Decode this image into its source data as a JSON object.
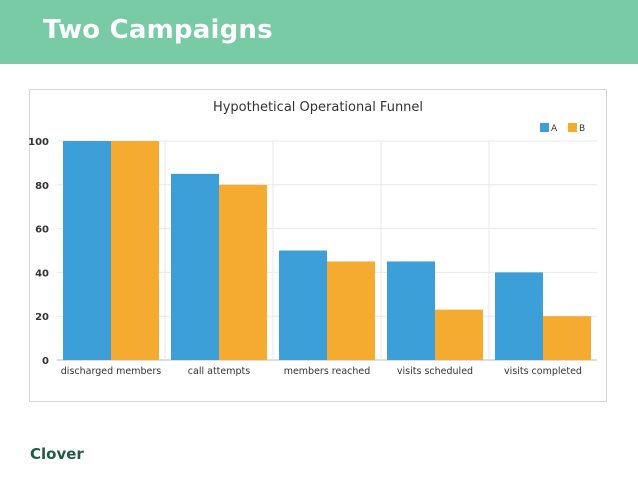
{
  "slide": {
    "title": "Two Campaigns",
    "brand": "Clover"
  },
  "colors": {
    "header": "#78cba5",
    "series_a": "#3d9fd8",
    "series_b": "#f5aa30",
    "gridline": "#e8e8e8",
    "text": "#333333"
  },
  "chart_data": {
    "type": "bar",
    "title": "Hypothetical Operational Funnel",
    "xlabel": "",
    "ylabel": "",
    "categories": [
      "discharged members",
      "call attempts",
      "members reached",
      "visits scheduled",
      "visits completed"
    ],
    "series": [
      {
        "name": "A",
        "values": [
          100,
          85,
          50,
          45,
          40
        ]
      },
      {
        "name": "B",
        "values": [
          100,
          80,
          45,
          23,
          20
        ]
      }
    ],
    "ylim": [
      0,
      100
    ],
    "yticks": [
      0,
      20,
      40,
      60,
      80,
      100
    ],
    "grid": true,
    "legend": "top-right"
  }
}
